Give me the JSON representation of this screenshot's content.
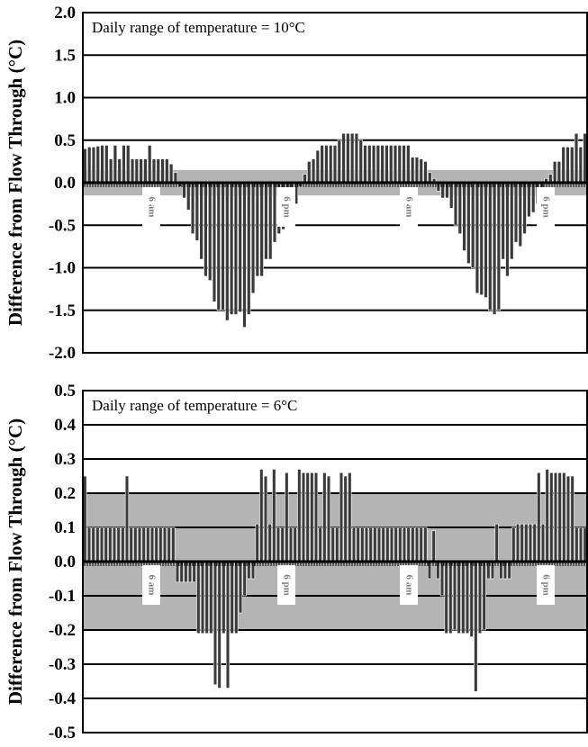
{
  "chart_data": [
    {
      "type": "bar",
      "ylabel": "Difference from Flow Through (°C)",
      "annotation": "Daily range of temperature = 10°C",
      "ylim": [
        -2.0,
        2.0
      ],
      "yticks": [
        "2.0",
        "1.5",
        "1.0",
        "0.5",
        "0.0",
        "-0.5",
        "-1.0",
        "-1.5",
        "-2.0"
      ],
      "grid": true,
      "shaded_band": [
        -0.15,
        0.15
      ],
      "time_labels": [
        "6 am",
        "6 pm",
        "6 am",
        "6 pm"
      ],
      "values": [
        0.4,
        0.42,
        0.42,
        0.43,
        0.44,
        0.44,
        0.28,
        0.44,
        0.28,
        0.44,
        0.44,
        0.28,
        0.28,
        0.28,
        0.28,
        0.44,
        0.28,
        0.28,
        0.28,
        0.28,
        0.22,
        0.12,
        -0.05,
        -0.18,
        -0.32,
        -0.6,
        -0.68,
        -0.9,
        -1.1,
        -1.15,
        -1.4,
        -1.5,
        -1.5,
        -1.62,
        -1.55,
        -1.55,
        -1.52,
        -1.7,
        -1.55,
        -1.3,
        -1.1,
        -1.1,
        -0.9,
        -0.9,
        -0.7,
        -0.6,
        -0.55,
        -0.42,
        -0.35,
        -0.25,
        -0.05,
        0.1,
        0.25,
        0.28,
        0.38,
        0.44,
        0.44,
        0.44,
        0.44,
        0.5,
        0.58,
        0.58,
        0.58,
        0.58,
        0.5,
        0.44,
        0.44,
        0.44,
        0.44,
        0.44,
        0.44,
        0.44,
        0.44,
        0.44,
        0.44,
        0.44,
        0.3,
        0.3,
        0.28,
        0.25,
        0.12,
        0.05,
        -0.1,
        -0.18,
        -0.18,
        -0.3,
        -0.5,
        -0.6,
        -0.8,
        -0.95,
        -1.0,
        -1.3,
        -1.32,
        -1.35,
        -1.5,
        -1.55,
        -1.5,
        -0.9,
        -1.1,
        -0.9,
        -0.7,
        -0.75,
        -0.6,
        -0.4,
        -0.35,
        -0.25,
        -0.1,
        0.05,
        0.1,
        0.25,
        0.25,
        0.42,
        0.42,
        0.42,
        0.58,
        0.42,
        0.58
      ]
    },
    {
      "type": "bar",
      "ylabel": "Difference from Flow Through (°C)",
      "annotation": "Daily range of temperature = 6°C",
      "ylim": [
        -0.5,
        0.5
      ],
      "yticks": [
        "0.5",
        "0.4",
        "0.3",
        "0.2",
        "0.1",
        "0.0",
        "-0.1",
        "-0.2",
        "-0.3",
        "-0.4",
        "-0.5"
      ],
      "grid": true,
      "shaded_band": [
        -0.2,
        0.2
      ],
      "time_labels": [
        "6 am",
        "6 pm",
        "6 am",
        "6 pm"
      ],
      "values": [
        0.25,
        0.1,
        0.1,
        0.1,
        0.1,
        0.1,
        0.1,
        0.1,
        0.1,
        0.1,
        0.25,
        0.1,
        0.1,
        0.1,
        0.1,
        0.1,
        0.1,
        0.1,
        0.1,
        0.1,
        0.1,
        0.1,
        -0.06,
        -0.06,
        -0.06,
        -0.06,
        -0.06,
        -0.21,
        -0.21,
        -0.21,
        -0.21,
        -0.36,
        -0.37,
        -0.21,
        -0.37,
        -0.21,
        -0.21,
        -0.15,
        -0.1,
        -0.05,
        -0.05,
        0.11,
        0.27,
        0.25,
        0.11,
        0.27,
        0.1,
        0.1,
        0.26,
        0.1,
        0.1,
        0.27,
        0.26,
        0.26,
        0.26,
        0.26,
        0.1,
        0.26,
        0.25,
        0.1,
        0.1,
        0.26,
        0.25,
        0.26,
        0.1,
        0.1,
        0.1,
        0.1,
        0.1,
        0.1,
        0.1,
        0.1,
        0.1,
        0.1,
        0.1,
        0.1,
        0.1,
        0.1,
        0.1,
        0.1,
        0.1,
        0.1,
        -0.05,
        0.09,
        -0.05,
        -0.1,
        -0.21,
        -0.21,
        -0.2,
        -0.21,
        -0.21,
        -0.21,
        -0.22,
        -0.38,
        -0.21,
        -0.2,
        -0.05,
        -0.05,
        0.11,
        -0.05,
        -0.05,
        -0.05,
        0.1,
        0.11,
        0.11,
        0.11,
        0.11,
        0.11,
        0.26,
        0.11,
        0.27,
        0.26,
        0.26,
        0.26,
        0.26,
        0.25,
        0.25,
        0.1,
        0.1,
        0.1
      ]
    }
  ]
}
